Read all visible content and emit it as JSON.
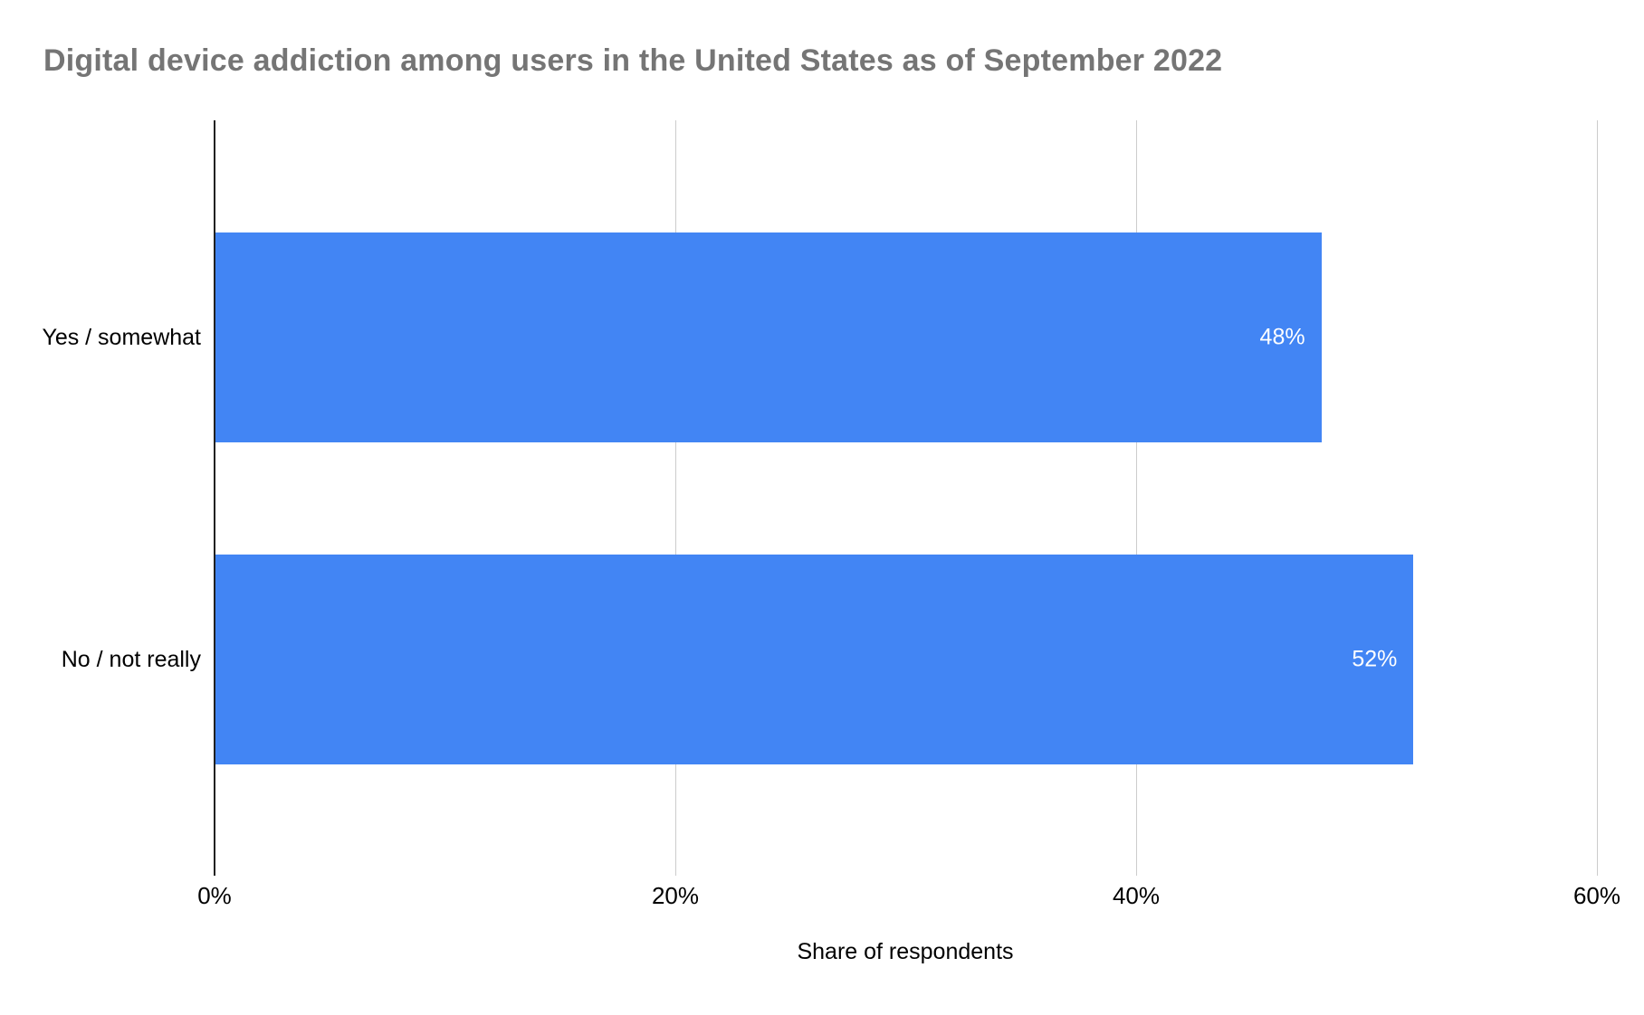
{
  "chart_data": {
    "type": "bar",
    "orientation": "horizontal",
    "title": "Digital device addiction among users in the United States as of September 2022",
    "categories": [
      "Yes / somewhat",
      "No / not really"
    ],
    "values": [
      48,
      52
    ],
    "value_labels": [
      "48%",
      "52%"
    ],
    "xlabel": "Share of respondents",
    "ylabel": "",
    "xlim": [
      0,
      60
    ],
    "x_ticks": [
      0,
      20,
      40,
      60
    ],
    "x_tick_labels": [
      "0%",
      "20%",
      "40%",
      "60%"
    ],
    "grid": true,
    "legend": "none",
    "colors": {
      "bar": "#4285f4",
      "title": "#757575",
      "axis_line": "#212121",
      "gridline": "#cccccc",
      "label_text": "#000000",
      "value_text": "#ffffff",
      "background": "#ffffff"
    }
  }
}
